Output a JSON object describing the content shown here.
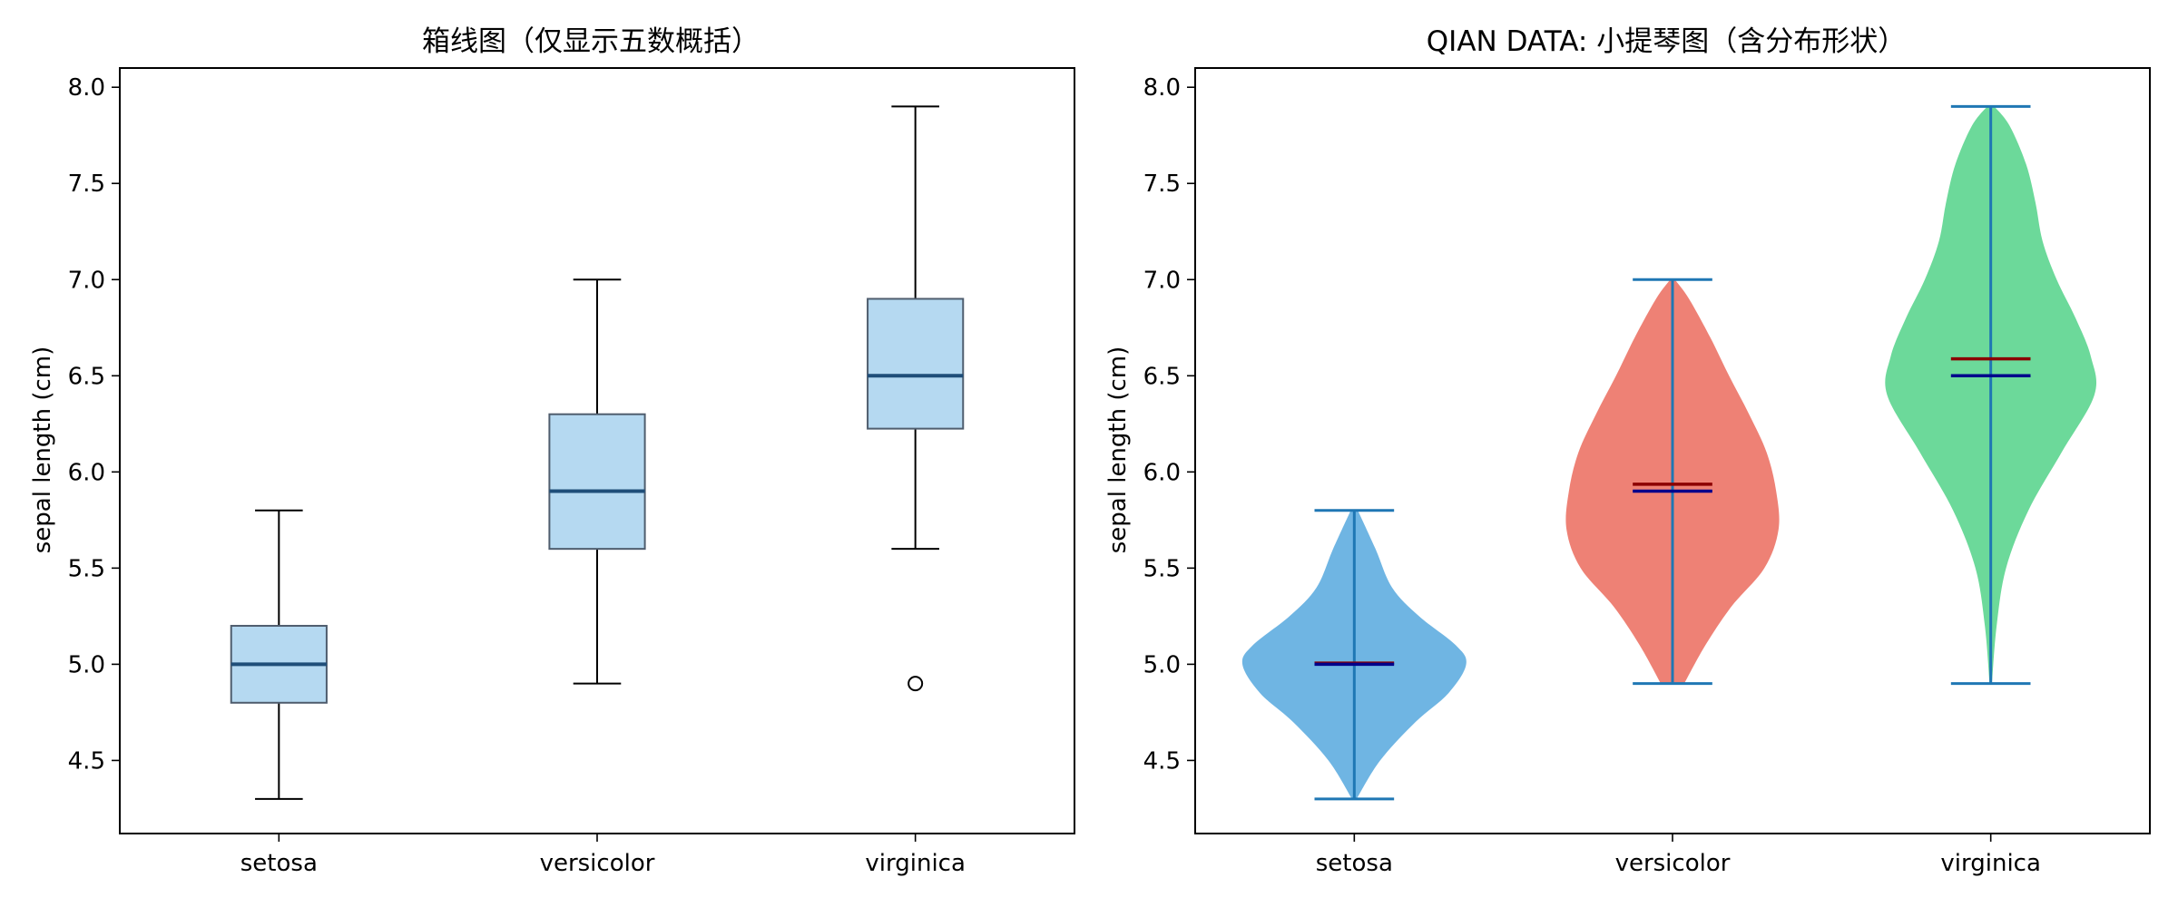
{
  "chart_data": [
    {
      "type": "box",
      "title": "箱线图（仅显示五数概括）",
      "ylabel": "sepal length (cm)",
      "xlabel": "",
      "categories": [
        "setosa",
        "versicolor",
        "virginica"
      ],
      "ylim": [
        4.12,
        8.1
      ],
      "yticks": [
        "4.5",
        "5.0",
        "5.5",
        "6.0",
        "6.5",
        "7.0",
        "7.5",
        "8.0"
      ],
      "box_fill": "#b5d9f1",
      "box_edge": "#4f5d6e",
      "median_color": "#1f4e79",
      "boxes": [
        {
          "category": "setosa",
          "whisker_low": 4.3,
          "q1": 4.8,
          "median": 5.0,
          "q3": 5.2,
          "whisker_high": 5.8,
          "outliers": []
        },
        {
          "category": "versicolor",
          "whisker_low": 4.9,
          "q1": 5.6,
          "median": 5.9,
          "q3": 6.3,
          "whisker_high": 7.0,
          "outliers": []
        },
        {
          "category": "virginica",
          "whisker_low": 5.6,
          "q1": 6.225,
          "median": 6.5,
          "q3": 6.9,
          "whisker_high": 7.9,
          "outliers": [
            4.9
          ]
        }
      ]
    },
    {
      "type": "violin",
      "title": "QIAN DATA: 小提琴图（含分布形状）",
      "ylabel": "sepal length (cm)",
      "xlabel": "",
      "categories": [
        "setosa",
        "versicolor",
        "virginica"
      ],
      "ylim": [
        4.12,
        8.1
      ],
      "yticks": [
        "4.5",
        "5.0",
        "5.5",
        "6.0",
        "6.5",
        "7.0",
        "7.5",
        "8.0"
      ],
      "line_color": "#1f77b4",
      "mean_color": "#8b0000",
      "median_color": "#00008b",
      "violins": [
        {
          "category": "setosa",
          "color": "#6fb5e3",
          "min": 4.3,
          "max": 5.8,
          "mean": 5.006,
          "median": 5.0,
          "profile": [
            [
              4.3,
              0.02
            ],
            [
              4.5,
              0.22
            ],
            [
              4.7,
              0.52
            ],
            [
              4.85,
              0.8
            ],
            [
              5.0,
              0.95
            ],
            [
              5.1,
              0.86
            ],
            [
              5.25,
              0.55
            ],
            [
              5.4,
              0.32
            ],
            [
              5.6,
              0.18
            ],
            [
              5.8,
              0.03
            ]
          ]
        },
        {
          "category": "versicolor",
          "color": "#ee8175",
          "min": 4.9,
          "max": 7.0,
          "mean": 5.936,
          "median": 5.9,
          "profile": [
            [
              4.9,
              0.1
            ],
            [
              5.1,
              0.28
            ],
            [
              5.3,
              0.5
            ],
            [
              5.5,
              0.78
            ],
            [
              5.7,
              0.9
            ],
            [
              5.9,
              0.88
            ],
            [
              6.1,
              0.8
            ],
            [
              6.3,
              0.65
            ],
            [
              6.5,
              0.48
            ],
            [
              6.7,
              0.32
            ],
            [
              6.9,
              0.14
            ],
            [
              7.0,
              0.02
            ]
          ]
        },
        {
          "category": "virginica",
          "color": "#6cd99a",
          "min": 4.9,
          "max": 7.9,
          "mean": 6.588,
          "median": 6.5,
          "profile": [
            [
              4.9,
              0.01
            ],
            [
              5.2,
              0.05
            ],
            [
              5.5,
              0.13
            ],
            [
              5.8,
              0.32
            ],
            [
              6.1,
              0.6
            ],
            [
              6.4,
              0.88
            ],
            [
              6.6,
              0.85
            ],
            [
              6.8,
              0.72
            ],
            [
              7.0,
              0.56
            ],
            [
              7.2,
              0.44
            ],
            [
              7.4,
              0.38
            ],
            [
              7.6,
              0.3
            ],
            [
              7.8,
              0.16
            ],
            [
              7.9,
              0.03
            ]
          ]
        }
      ]
    }
  ]
}
